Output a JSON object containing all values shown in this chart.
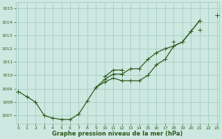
{
  "x": [
    0,
    1,
    2,
    3,
    4,
    5,
    6,
    7,
    8,
    9,
    10,
    11,
    12,
    13,
    14,
    15,
    16,
    17,
    18,
    19,
    20,
    21,
    22,
    23
  ],
  "line1": [
    1008.8,
    1008.4,
    1008.0,
    1007.0,
    1006.8,
    1006.7,
    1006.7,
    1007.1,
    1008.1,
    1009.1,
    1009.5,
    1009.8,
    1009.6,
    1009.6,
    1009.6,
    1010.0,
    1010.8,
    1011.2,
    1012.2,
    1012.5,
    1013.3,
    1014.1,
    null,
    null
  ],
  "line2": [
    1008.8,
    null,
    null,
    null,
    null,
    null,
    null,
    null,
    null,
    1009.1,
    1009.7,
    1010.1,
    1010.1,
    1010.5,
    1010.5,
    1011.2,
    1011.7,
    1012.0,
    1012.2,
    1012.5,
    1013.3,
    1014.1,
    null,
    1014.5
  ],
  "line3": [
    1008.8,
    null,
    null,
    null,
    null,
    null,
    null,
    null,
    null,
    null,
    1009.9,
    1010.4,
    1010.4,
    null,
    null,
    null,
    null,
    null,
    1012.5,
    null,
    null,
    1013.4,
    null,
    1014.5
  ],
  "ylim_min": 1006.4,
  "ylim_max": 1015.5,
  "yticks": [
    1007,
    1008,
    1009,
    1010,
    1011,
    1012,
    1013,
    1014,
    1015
  ],
  "xticks": [
    0,
    1,
    2,
    3,
    4,
    5,
    6,
    7,
    8,
    9,
    10,
    11,
    12,
    13,
    14,
    15,
    16,
    17,
    18,
    19,
    20,
    21,
    22,
    23
  ],
  "xlabel": "Graphe pression niveau de la mer (hPa)",
  "line_color": "#2d5a1b",
  "bg_color": "#cce8e0",
  "grid_color": "#9dc8bb",
  "marker": "+",
  "marker_size": 4,
  "linewidth": 0.9
}
